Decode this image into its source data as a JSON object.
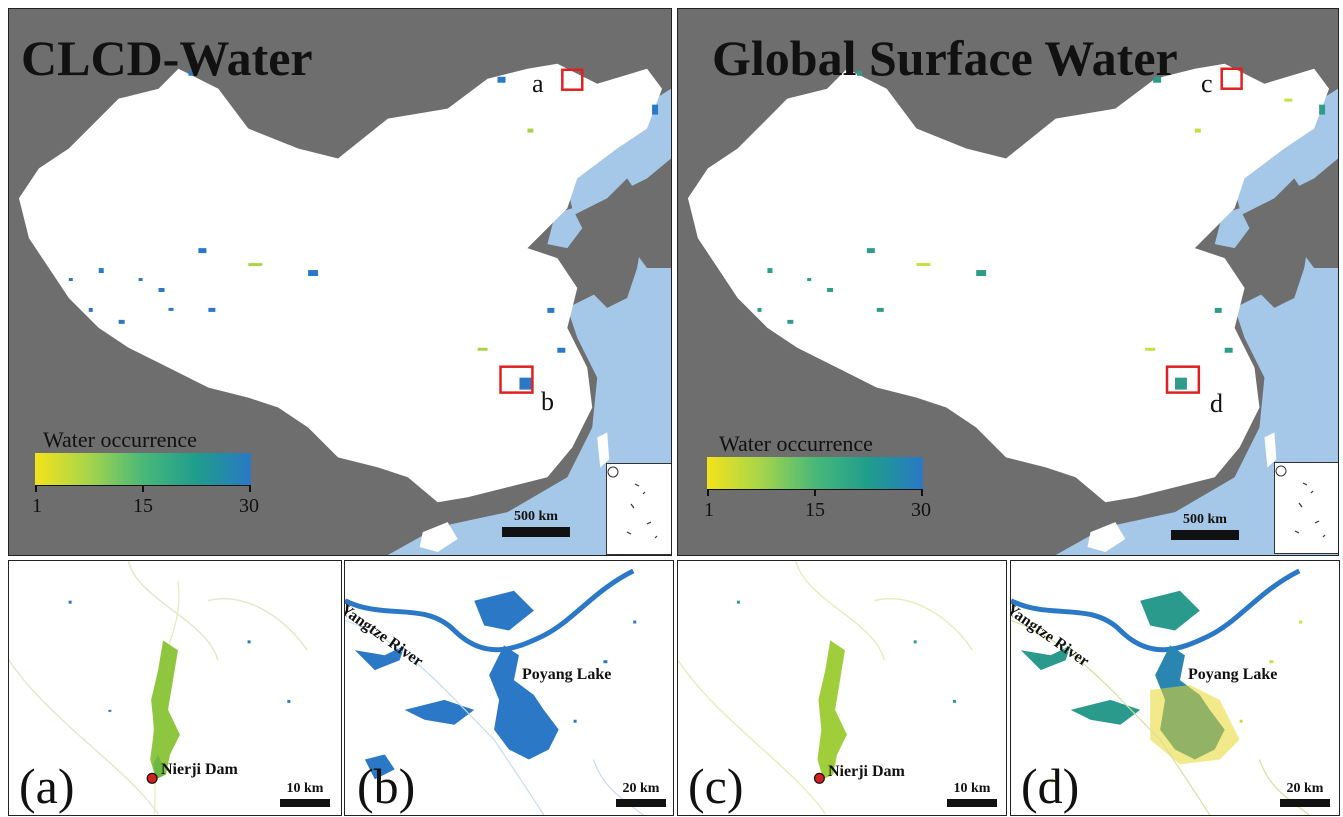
{
  "top_panels": [
    {
      "title": "CLCD-Water",
      "box_a": "a",
      "box_b": "b",
      "legend_title": "Water occurrence",
      "ticks": [
        "1",
        "15",
        "30"
      ],
      "scale": "500  km"
    },
    {
      "title": "Global Surface Water",
      "box_a": "c",
      "box_b": "d",
      "legend_title": "Water occurrence",
      "ticks": [
        "1",
        "15",
        "30"
      ],
      "scale": "500  km"
    }
  ],
  "bottom_panels": [
    {
      "letter": "(a)",
      "place": "Nierji Dam",
      "scale": "10  km"
    },
    {
      "letter": "(b)",
      "river": "Yangtze River",
      "lake": "Poyang Lake",
      "scale": "20  km"
    },
    {
      "letter": "(c)",
      "place": "Nierji Dam",
      "scale": "10  km"
    },
    {
      "letter": "(d)",
      "river": "Yangtze River",
      "lake": "Poyang Lake",
      "scale": "20  km"
    }
  ],
  "legend_range": [
    1,
    30
  ],
  "colors": {
    "land": "#ffffff",
    "neighbors": "#6e6e6e",
    "sea": "#a6c8e8",
    "water_low": "#f4e31b",
    "water_high": "#2a78c6",
    "highlight_box": "#e02020",
    "dam_marker": "#d42020"
  }
}
